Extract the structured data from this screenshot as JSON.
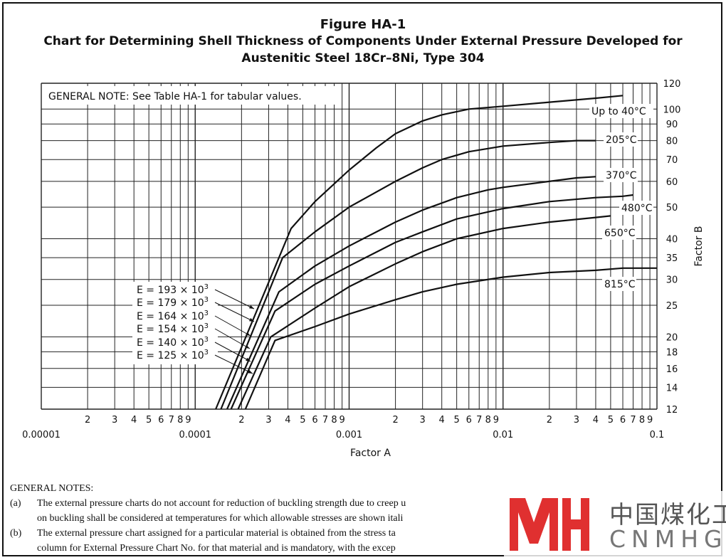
{
  "figure": {
    "title": "Figure HA-1",
    "subtitle_line1": "Chart for Determining Shell Thickness of Components Under External Pressure Developed for",
    "subtitle_line2": "Austenitic Steel 18Cr–8Ni, Type 304"
  },
  "chart_data": {
    "type": "line",
    "xscale": "log",
    "yscale": "log",
    "xlim": [
      1e-05,
      0.1
    ],
    "ylim": [
      12,
      120
    ],
    "xlabel": "Factor A",
    "ylabel": "Factor B",
    "x_major_ticks": [
      "0.00001",
      "0.0001",
      "0.001",
      "0.01",
      "0.1"
    ],
    "x_minor_tick_labels": [
      "2",
      "3",
      "4",
      "5",
      "6",
      "7",
      "8",
      "9"
    ],
    "y_ticks": [
      12,
      14,
      16,
      18,
      20,
      25,
      30,
      35,
      40,
      50,
      60,
      70,
      80,
      90,
      100,
      120
    ],
    "grid": true,
    "general_note": "GENERAL NOTE: See Table HA-1 for tabular values.",
    "series": [
      {
        "name": "Up to 40°C",
        "label": "Up to 40°C",
        "E": "193",
        "x": [
          0.000136,
          0.00042,
          0.0006,
          0.001,
          0.0015,
          0.002,
          0.003,
          0.004,
          0.006,
          0.01,
          0.02,
          0.04,
          0.06
        ],
        "y": [
          12,
          43,
          52,
          65,
          76,
          84,
          92,
          96,
          100,
          102,
          105,
          108,
          110
        ]
      },
      {
        "name": "205°C",
        "label": "205°C",
        "E": "179",
        "x": [
          0.000147,
          0.00037,
          0.0006,
          0.001,
          0.002,
          0.003,
          0.004,
          0.006,
          0.01,
          0.02,
          0.03,
          0.04
        ],
        "y": [
          12,
          35,
          42,
          50,
          60,
          66,
          70,
          74,
          77,
          79,
          80,
          80
        ]
      },
      {
        "name": "370°C",
        "label": "370°C",
        "E": "164",
        "x": [
          0.000161,
          0.00035,
          0.0006,
          0.001,
          0.002,
          0.003,
          0.005,
          0.008,
          0.01,
          0.02,
          0.03,
          0.04
        ],
        "y": [
          12,
          27.5,
          33,
          38,
          45,
          49,
          53.5,
          56.5,
          57.5,
          60,
          61.5,
          62
        ]
      },
      {
        "name": "480°C",
        "label": "480°C",
        "E": "154",
        "x": [
          0.000171,
          0.00033,
          0.0006,
          0.001,
          0.002,
          0.003,
          0.005,
          0.01,
          0.02,
          0.04,
          0.06,
          0.07
        ],
        "y": [
          12,
          24,
          29,
          33,
          39,
          42,
          46,
          49.5,
          52,
          53.5,
          54,
          54.5
        ]
      },
      {
        "name": "650°C",
        "label": "650°C",
        "E": "140",
        "x": [
          0.00019,
          0.00031,
          0.0006,
          0.001,
          0.002,
          0.003,
          0.005,
          0.01,
          0.02,
          0.04,
          0.05
        ],
        "y": [
          12,
          20,
          24.5,
          28.5,
          33.5,
          36.5,
          40,
          43,
          45,
          46.5,
          47
        ]
      },
      {
        "name": "815°C",
        "label": "815°C",
        "E": "125",
        "x": [
          0.000212,
          0.00033,
          0.0006,
          0.001,
          0.002,
          0.003,
          0.005,
          0.01,
          0.02,
          0.04,
          0.06,
          0.1
        ],
        "y": [
          12,
          19.5,
          21.5,
          23.5,
          26,
          27.5,
          29,
          30.5,
          31.5,
          32,
          32.5,
          32.5
        ]
      }
    ],
    "e_labels": [
      "E = 193 × 10",
      "E = 179 × 10",
      "E = 164 × 10",
      "E = 154 × 10",
      "E = 140 × 10",
      "E = 125 × 10"
    ],
    "e_exponent": "3"
  },
  "notes": {
    "heading": "GENERAL NOTES:",
    "items": [
      {
        "key": "(a)",
        "line1": "The external pressure charts do not account for reduction of buckling strength due to creep u",
        "line2": "on buckling shall be considered at temperatures for which allowable stresses are shown itali"
      },
      {
        "key": "(b)",
        "line1": "The external pressure chart assigned for a particular material is obtained from the stress ta",
        "line2": "column for External Pressure Chart No. for that material and is mandatory, with the excep"
      }
    ]
  },
  "watermark": {
    "logo": "MH",
    "cn": "中国煤化工",
    "en": "CNMHG"
  }
}
